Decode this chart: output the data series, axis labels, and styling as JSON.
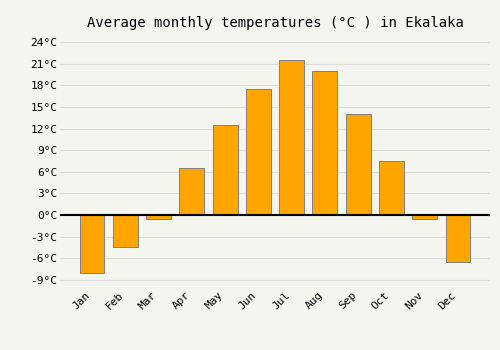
{
  "months": [
    "Jan",
    "Feb",
    "Mar",
    "Apr",
    "May",
    "Jun",
    "Jul",
    "Aug",
    "Sep",
    "Oct",
    "Nov",
    "Dec"
  ],
  "values": [
    -8.0,
    -4.5,
    -0.5,
    6.5,
    12.5,
    17.5,
    21.5,
    20.0,
    14.0,
    7.5,
    -0.5,
    -6.5
  ],
  "bar_color": "#FFA500",
  "bar_edge_color": "#808080",
  "title": "Average monthly temperatures (°C ) in Ekalaka",
  "ytick_labels": [
    "-9°C",
    "-6°C",
    "-3°C",
    "0°C",
    "3°C",
    "6°C",
    "9°C",
    "12°C",
    "15°C",
    "18°C",
    "21°C",
    "24°C"
  ],
  "ytick_values": [
    -9,
    -6,
    -3,
    0,
    3,
    6,
    9,
    12,
    15,
    18,
    21,
    24
  ],
  "ylim": [
    -10,
    25
  ],
  "background_color": "#f5f5f0",
  "grid_color": "#dddddd",
  "title_fontsize": 10,
  "tick_fontsize": 8,
  "bar_width": 0.75
}
